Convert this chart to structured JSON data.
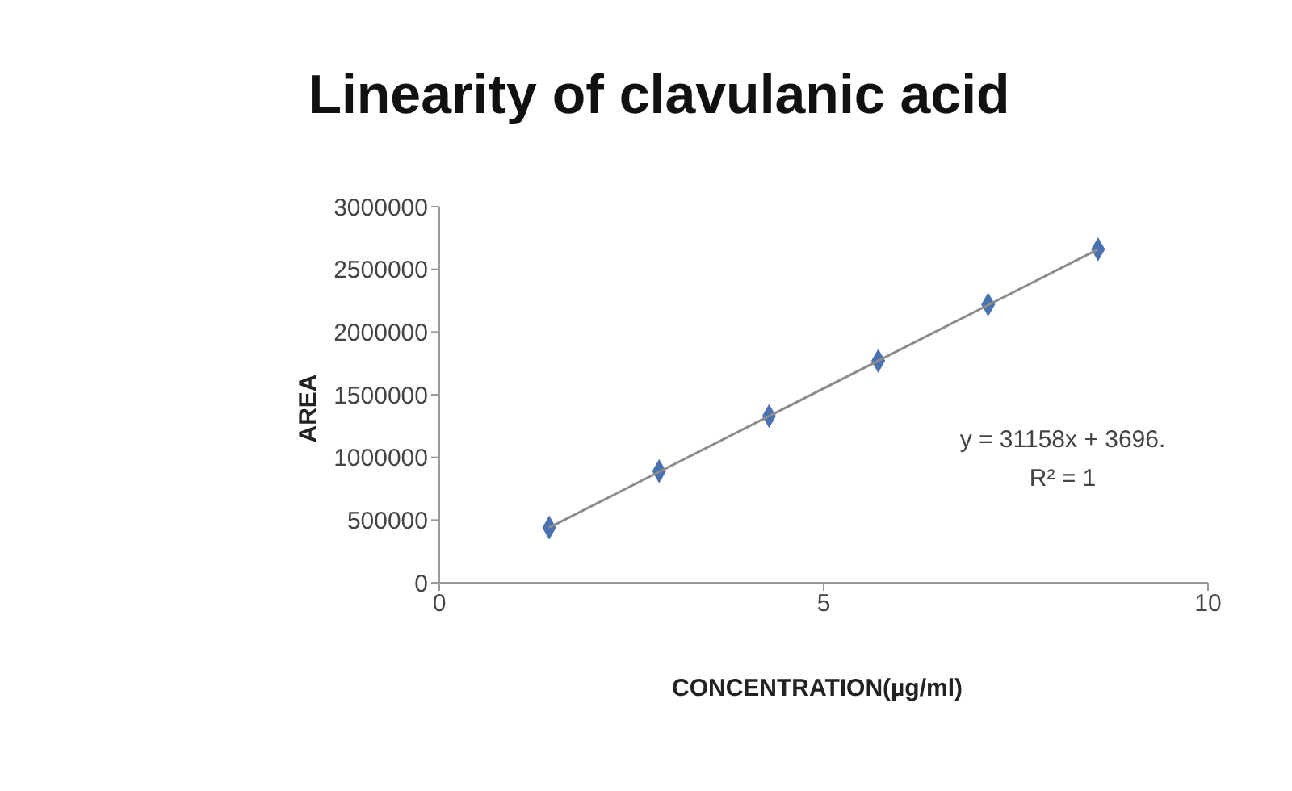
{
  "chart_data": {
    "type": "scatter",
    "title": "Linearity of clavulanic acid",
    "xlabel": "CONCENTRATION(µg/ml)",
    "ylabel": "AREA",
    "x": [
      1.43,
      2.86,
      4.29,
      5.71,
      7.14,
      8.57
    ],
    "series": [
      {
        "color": "#4a72b0",
        "values": [
          440000,
          890000,
          1330000,
          1770000,
          2220000,
          2660000
        ]
      },
      {
        "type": "line",
        "color": "#8c8c8c",
        "marker": "none",
        "x": [
          1.43,
          8.57
        ],
        "values": [
          440000,
          2660000
        ]
      }
    ],
    "xlim": [
      0,
      10
    ],
    "xticks": [
      0,
      5,
      10
    ],
    "ylim": [
      0,
      3000000
    ],
    "yticks": [
      0,
      500000,
      1000000,
      1500000,
      2000000,
      2500000,
      3000000
    ],
    "annotations": [
      "y = 31158x + 3696.",
      "R² = 1"
    ],
    "marker": "diamond",
    "line_style": "solid",
    "grid": false,
    "legend": false
  }
}
